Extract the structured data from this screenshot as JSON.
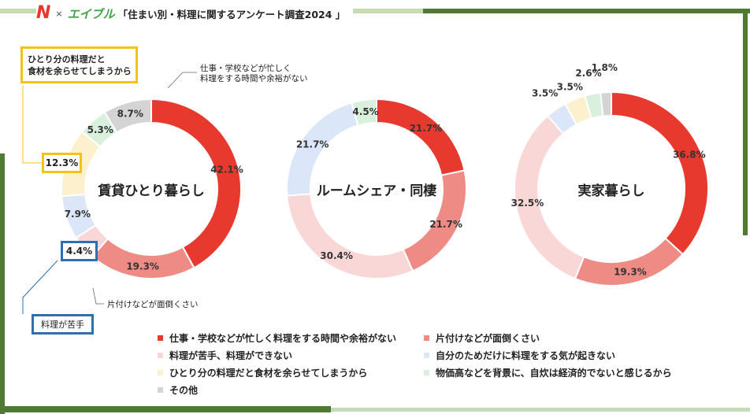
{
  "header": {
    "logo_left": "N",
    "separator": "×",
    "logo_right": "エイブル",
    "title": "「住まい別・料理に関するアンケート調査2024 」"
  },
  "colors": {
    "c1": "#e8392f",
    "c2": "#ef8b85",
    "c3": "#f9d7d6",
    "c4": "#dbe6f8",
    "c5": "#fdf0cc",
    "c6": "#d9f0dc",
    "c7": "#d4d4d4",
    "frame_dark": "#4e7a33",
    "frame_light": "#c5dcb2",
    "callout_yellow": "#f4c318",
    "callout_blue": "#2f6fb0"
  },
  "chart_data": [
    {
      "type": "donut",
      "title": "賃貸ひとり暮らし",
      "categories": [
        "仕事・学校などが忙しく料理をする時間や余裕がない",
        "片付けなどが面倒くさい",
        "料理が苦手、料理ができない",
        "自分のためだけに料理をする気が起きない",
        "ひとり分の料理だと食材を余らせてしまうから",
        "物価高などを背景に、自炊は経済的でないと感じるから",
        "その他"
      ],
      "values": [
        42.1,
        19.3,
        4.4,
        7.9,
        12.3,
        5.3,
        8.7
      ],
      "labels": [
        "42.1%",
        "19.3%",
        "4.4%",
        "7.9%",
        "12.3%",
        "5.3%",
        "8.7%"
      ]
    },
    {
      "type": "donut",
      "title": "ルームシェア・同棲",
      "categories": [
        "仕事・学校などが忙しく料理をする時間や余裕がない",
        "片付けなどが面倒くさい",
        "料理が苦手、料理ができない",
        "自分のためだけに料理をする気が起きない",
        "ひとり分の料理だと食材を余らせてしまうから",
        "物価高などを背景に、自炊は経済的でないと感じるから",
        "その他"
      ],
      "values": [
        21.7,
        21.7,
        30.4,
        21.7,
        0,
        4.5,
        0
      ],
      "labels": [
        "21.7%",
        "21.7%",
        "30.4%",
        "21.7%",
        "",
        "4.5%",
        ""
      ]
    },
    {
      "type": "donut",
      "title": "実家暮らし",
      "categories": [
        "仕事・学校などが忙しく料理をする時間や余裕がない",
        "片付けなどが面倒くさい",
        "料理が苦手、料理ができない",
        "自分のためだけに料理をする気が起きない",
        "ひとり分の料理だと食材を余らせてしまうから",
        "物価高などを背景に、自炊は経済的でないと感じるから",
        "その他"
      ],
      "values": [
        36.8,
        19.3,
        32.5,
        3.5,
        3.5,
        2.6,
        1.8
      ],
      "labels": [
        "36.8%",
        "19.3%",
        "32.5%",
        "3.5%",
        "3.5%",
        "2.6%",
        "1.8%"
      ]
    }
  ],
  "callouts": {
    "busy": "仕事・学校などが忙しく",
    "busy2": "料理をする時間や余裕がない",
    "cleanup": "片付けなどが面倒くさい",
    "leftover": "ひとり分の料理だと",
    "leftover2": "食材を余らせてしまうから",
    "bad_at_cooking": "料理が苦手"
  },
  "legend": [
    {
      "label": "仕事・学校などが忙しく料理をする時間や余裕がない",
      "color": "#e8392f"
    },
    {
      "label": "片付けなどが面倒くさい",
      "color": "#ef8b85"
    },
    {
      "label": "料理が苦手、料理ができない",
      "color": "#f9d7d6"
    },
    {
      "label": "自分のためだけに料理をする気が起きない",
      "color": "#dbe6f8"
    },
    {
      "label": "ひとり分の料理だと食材を余らせてしまうから",
      "color": "#fdf0cc"
    },
    {
      "label": "物価高などを背景に、自炊は経済的でないと感じるから",
      "color": "#d9f0dc"
    },
    {
      "label": "その他",
      "color": "#d4d4d4"
    }
  ]
}
